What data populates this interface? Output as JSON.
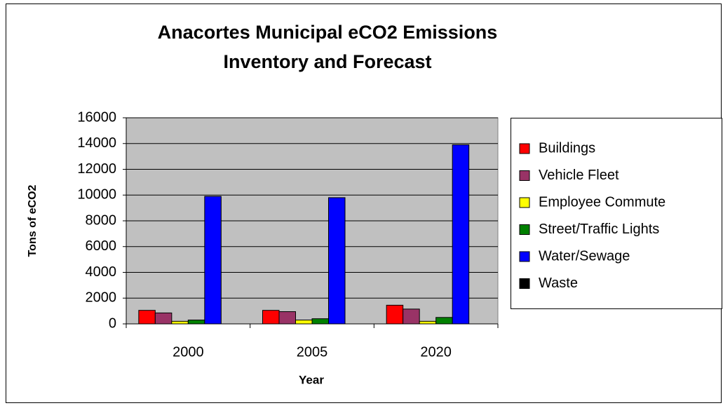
{
  "chart_data": {
    "type": "bar",
    "title": [
      "Anacortes Municipal eCO2 Emissions",
      "Inventory and Forecast"
    ],
    "x_label": "Year",
    "y_label": "Tons of eCO2",
    "categories": [
      "2000",
      "2005",
      "2020"
    ],
    "series": [
      {
        "name": "Buildings",
        "color": "#ff0000",
        "values": [
          1050,
          1050,
          1450
        ]
      },
      {
        "name": "Vehicle Fleet",
        "color": "#993366",
        "values": [
          850,
          950,
          1150
        ]
      },
      {
        "name": "Employee Commute",
        "color": "#ffff00",
        "values": [
          200,
          300,
          200
        ]
      },
      {
        "name": "Street/Traffic Lights",
        "color": "#008000",
        "values": [
          300,
          400,
          500
        ]
      },
      {
        "name": "Water/Sewage",
        "color": "#0000ff",
        "values": [
          9900,
          9800,
          13900
        ]
      },
      {
        "name": "Waste",
        "color": "#000000",
        "values": [
          0,
          0,
          0
        ]
      }
    ],
    "ylim": [
      0,
      16000
    ],
    "yticks": [
      0,
      2000,
      4000,
      6000,
      8000,
      10000,
      12000,
      14000,
      16000
    ],
    "grid": true,
    "legend": "right"
  }
}
